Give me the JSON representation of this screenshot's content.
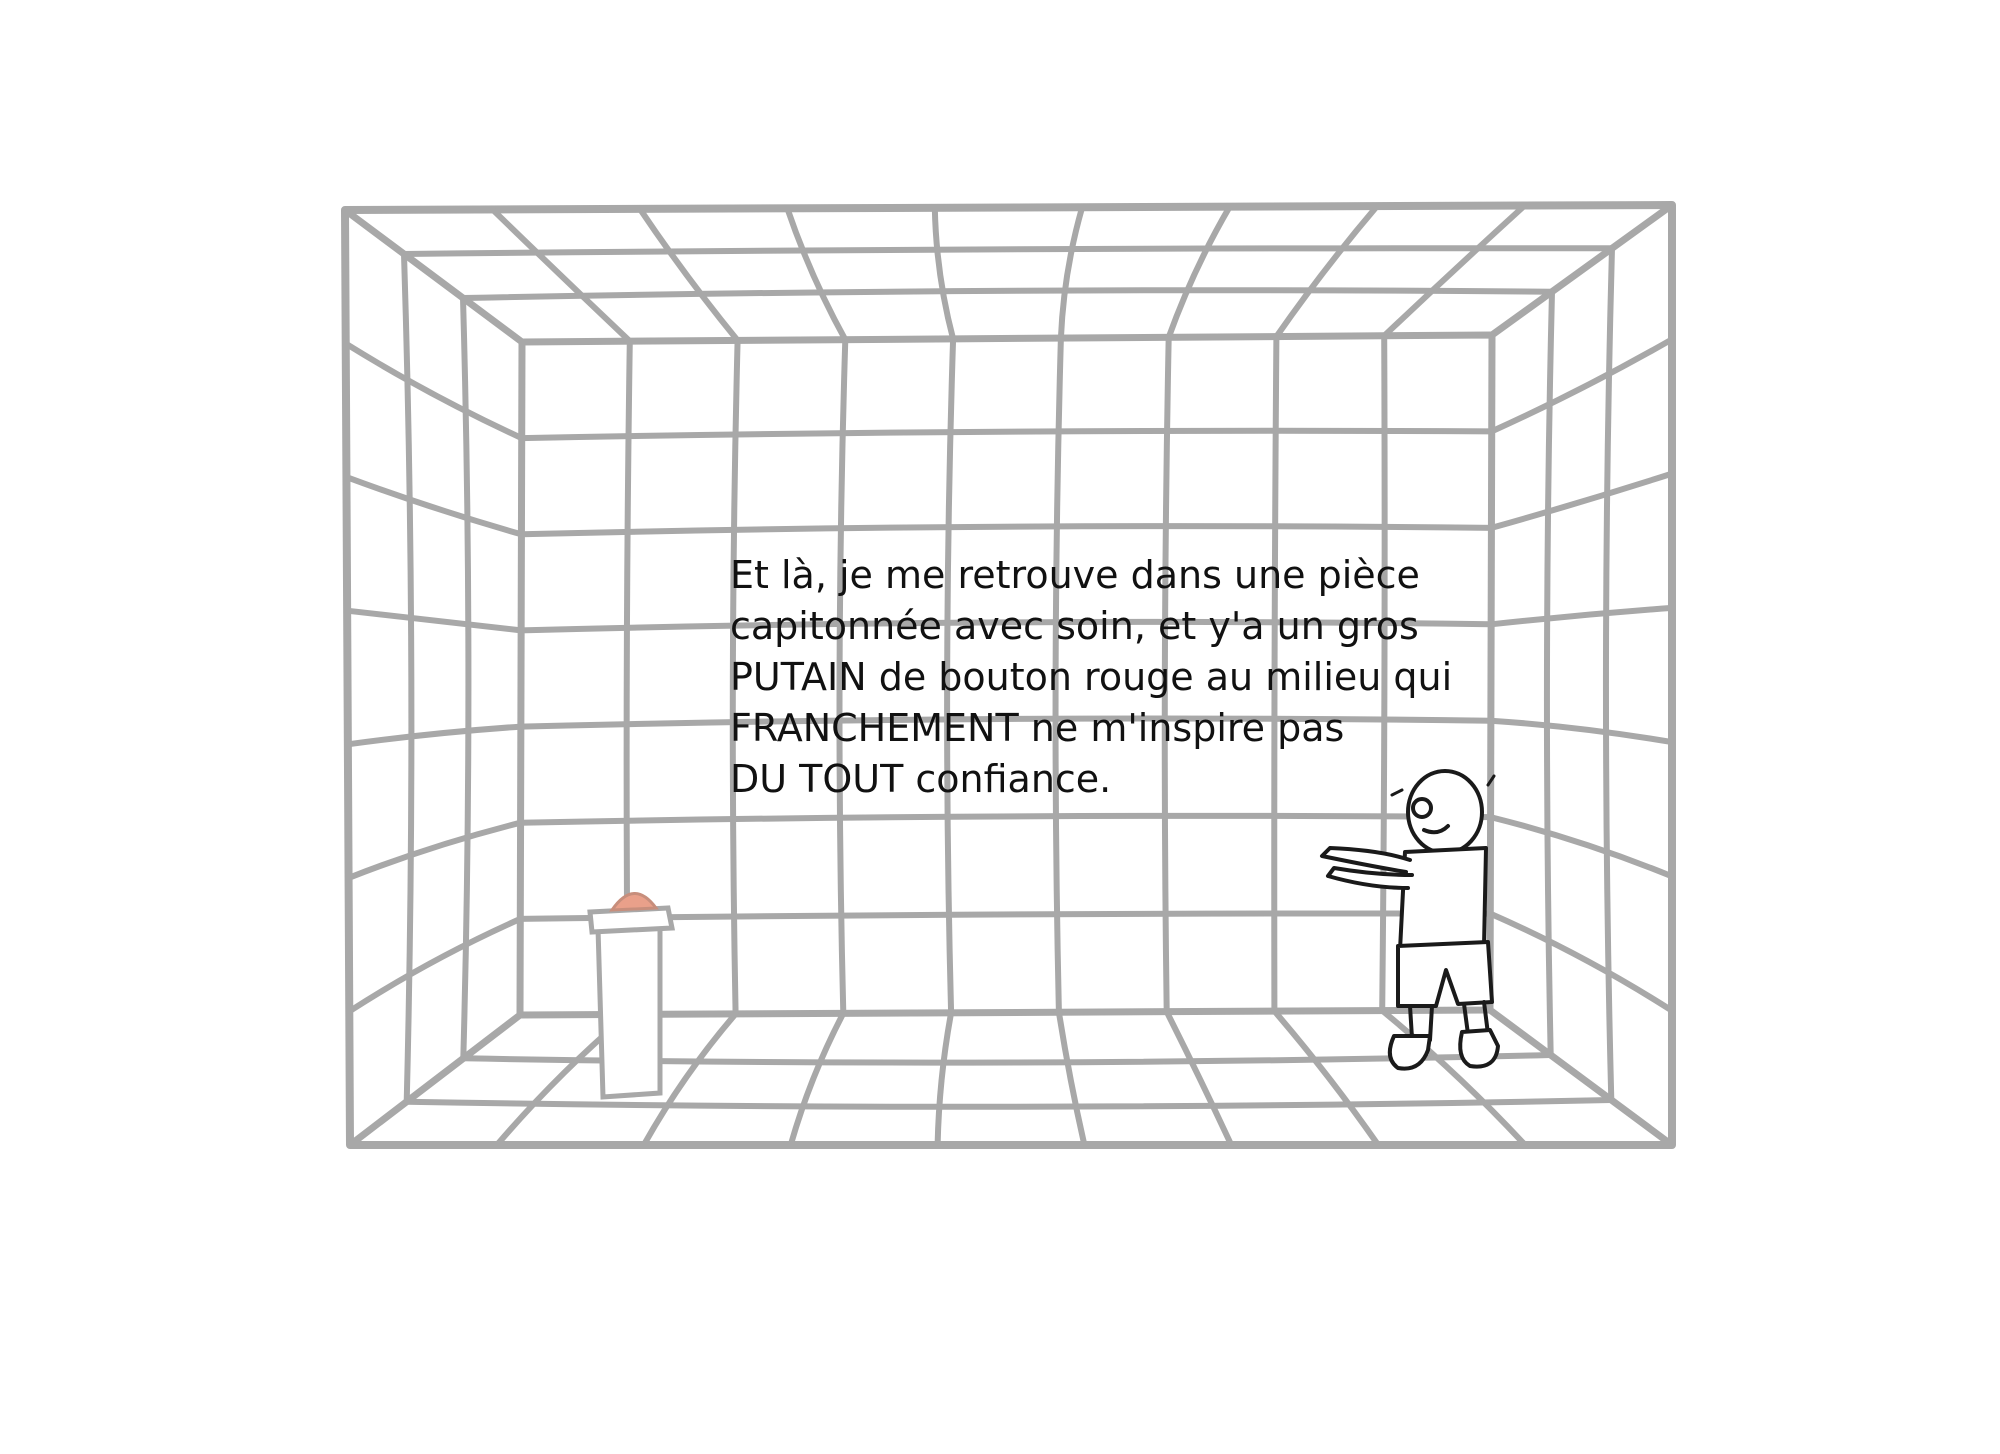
{
  "caption": {
    "lines": [
      "Et là, je me retrouve dans une pièce",
      "capitonnée avec soin, et y'a un gros",
      "PUTAIN de bouton rouge au milieu qui",
      "FRANCHEMENT ne m'inspire pas",
      "DU TOUT confiance."
    ]
  },
  "colors": {
    "padding_stroke": "#a8a8a8",
    "ink": "#1a1a1a",
    "button_red": "#e9a08a",
    "background": "#ffffff"
  },
  "icons": {
    "button": "red-button-icon",
    "character": "stick-figure-icon"
  }
}
